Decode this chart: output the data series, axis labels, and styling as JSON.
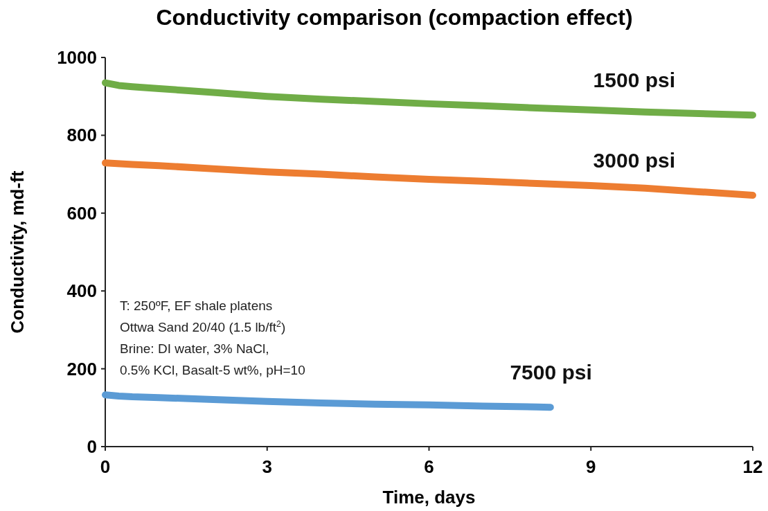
{
  "chart_data": {
    "type": "line",
    "title": "Conductivity comparison (compaction effect)",
    "xlabel": "Time, days",
    "ylabel": "Conductivity, md-ft",
    "xlim": [
      0,
      12
    ],
    "xticks": [
      0,
      3,
      6,
      9,
      12
    ],
    "ylim": [
      0,
      1000
    ],
    "yticks": [
      0,
      200,
      400,
      600,
      800,
      1000
    ],
    "grid": false,
    "legend": false,
    "marker": "none",
    "line_style": "solid",
    "series": [
      {
        "name": "1500 psi",
        "color": "#70ad47",
        "x": [
          0,
          0.25,
          0.5,
          1,
          1.5,
          2,
          3,
          4,
          5,
          6,
          7,
          8,
          9,
          10,
          11,
          12
        ],
        "values": [
          935,
          928,
          925,
          920,
          915,
          910,
          900,
          893,
          887,
          881,
          876,
          870,
          865,
          860,
          856,
          852
        ]
      },
      {
        "name": "3000 psi",
        "color": "#ed7d31",
        "x": [
          0,
          0.5,
          1,
          2,
          3,
          4,
          5,
          6,
          7,
          8,
          9,
          10,
          11,
          12
        ],
        "values": [
          729,
          725,
          722,
          714,
          706,
          700,
          693,
          687,
          682,
          676,
          671,
          664,
          655,
          646
        ]
      },
      {
        "name": "7500 psi",
        "color": "#5b9bd5",
        "x": [
          0,
          0.25,
          0.5,
          1,
          2,
          3,
          4,
          5,
          6,
          7,
          8,
          8.25
        ],
        "values": [
          133,
          130,
          128,
          126,
          121,
          116,
          112,
          109,
          107,
          104,
          102,
          101
        ]
      }
    ],
    "annotations": [
      "T: 250ºF, EF shale platens\nOttwa Sand 20/40 (1.5 lb/ft$^{2}$)\nBrine: DI water, 3% NaCl,\n0.5% KCl, Basalt-5 wt%, pH=10"
    ]
  }
}
